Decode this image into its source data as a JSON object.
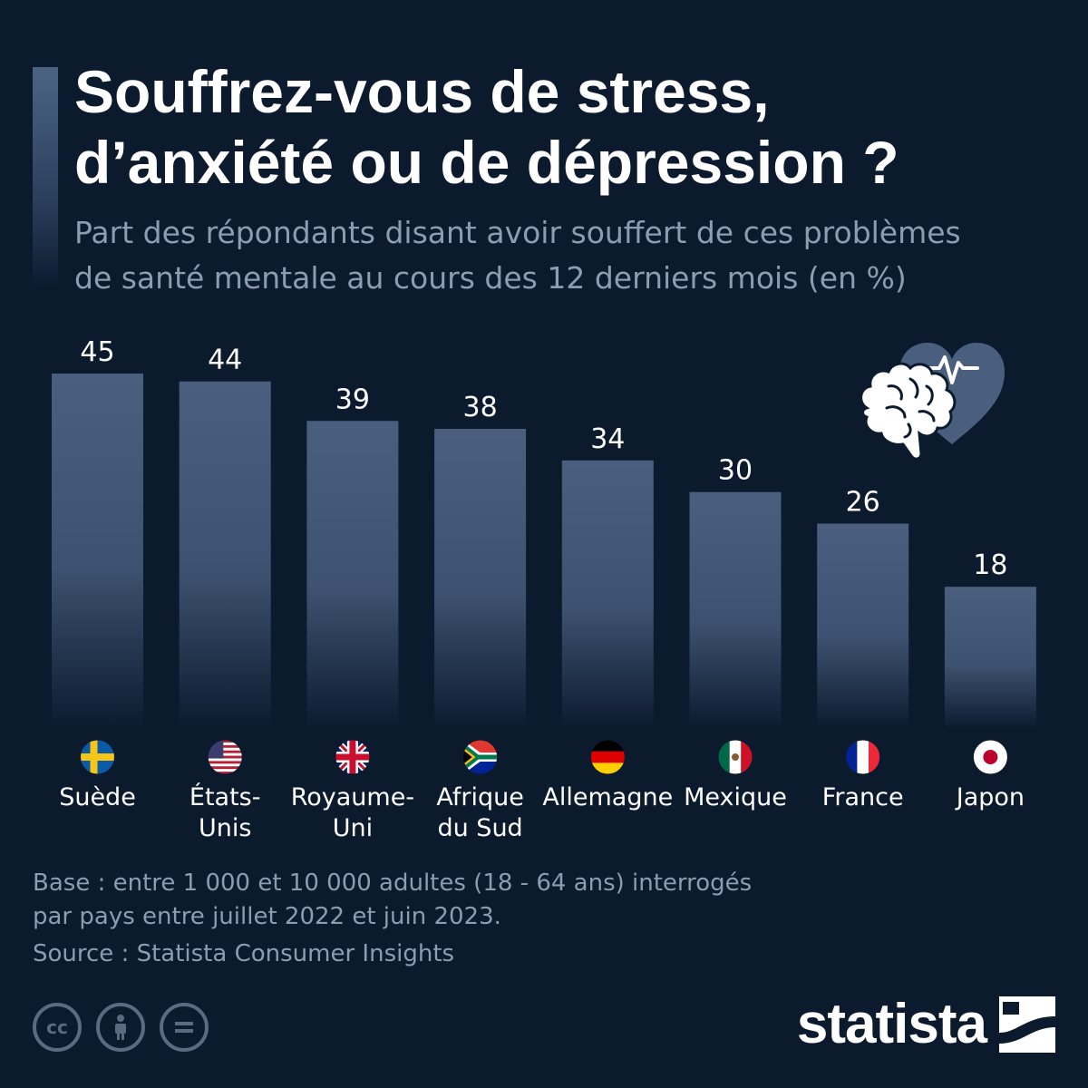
{
  "header": {
    "title_line1": "Souffrez-vous de stress,",
    "title_line2": "d’anxiété ou de dépression ?",
    "subtitle_line1": "Part des répondants disant avoir souffert de ces problèmes",
    "subtitle_line2": "de santé mentale au cours des 12 derniers mois (en %)"
  },
  "chart_data": {
    "type": "bar",
    "categories": [
      [
        "Suède"
      ],
      [
        "États-",
        "Unis"
      ],
      [
        "Royaume-",
        "Uni"
      ],
      [
        "Afrique",
        "du Sud"
      ],
      [
        "Allemagne"
      ],
      [
        "Mexique"
      ],
      [
        "France"
      ],
      [
        "Japon"
      ]
    ],
    "values": [
      45,
      44,
      39,
      38,
      34,
      30,
      26,
      18
    ],
    "flags": [
      "sweden-flag-icon",
      "usa-flag-icon",
      "uk-flag-icon",
      "south-africa-flag-icon",
      "germany-flag-icon",
      "mexico-flag-icon",
      "france-flag-icon",
      "japan-flag-icon"
    ],
    "ylim": [
      0,
      45
    ],
    "bar_color": "#4a5f7e",
    "grid": false
  },
  "footer": {
    "note_line1": "Base : entre 1 000 et 10 000 adultes (18 - 64 ans) interrogés",
    "note_line2": "par pays entre juillet 2022 et juin 2023.",
    "source": "Source : Statista Consumer Insights",
    "license_icons": [
      "cc-icon",
      "attribution-icon",
      "no-derivatives-icon"
    ],
    "brand": "statista"
  },
  "colors": {
    "background": "#0c1a2e",
    "bar": "#4a5f7e",
    "muted_text": "#8e9bb0"
  }
}
